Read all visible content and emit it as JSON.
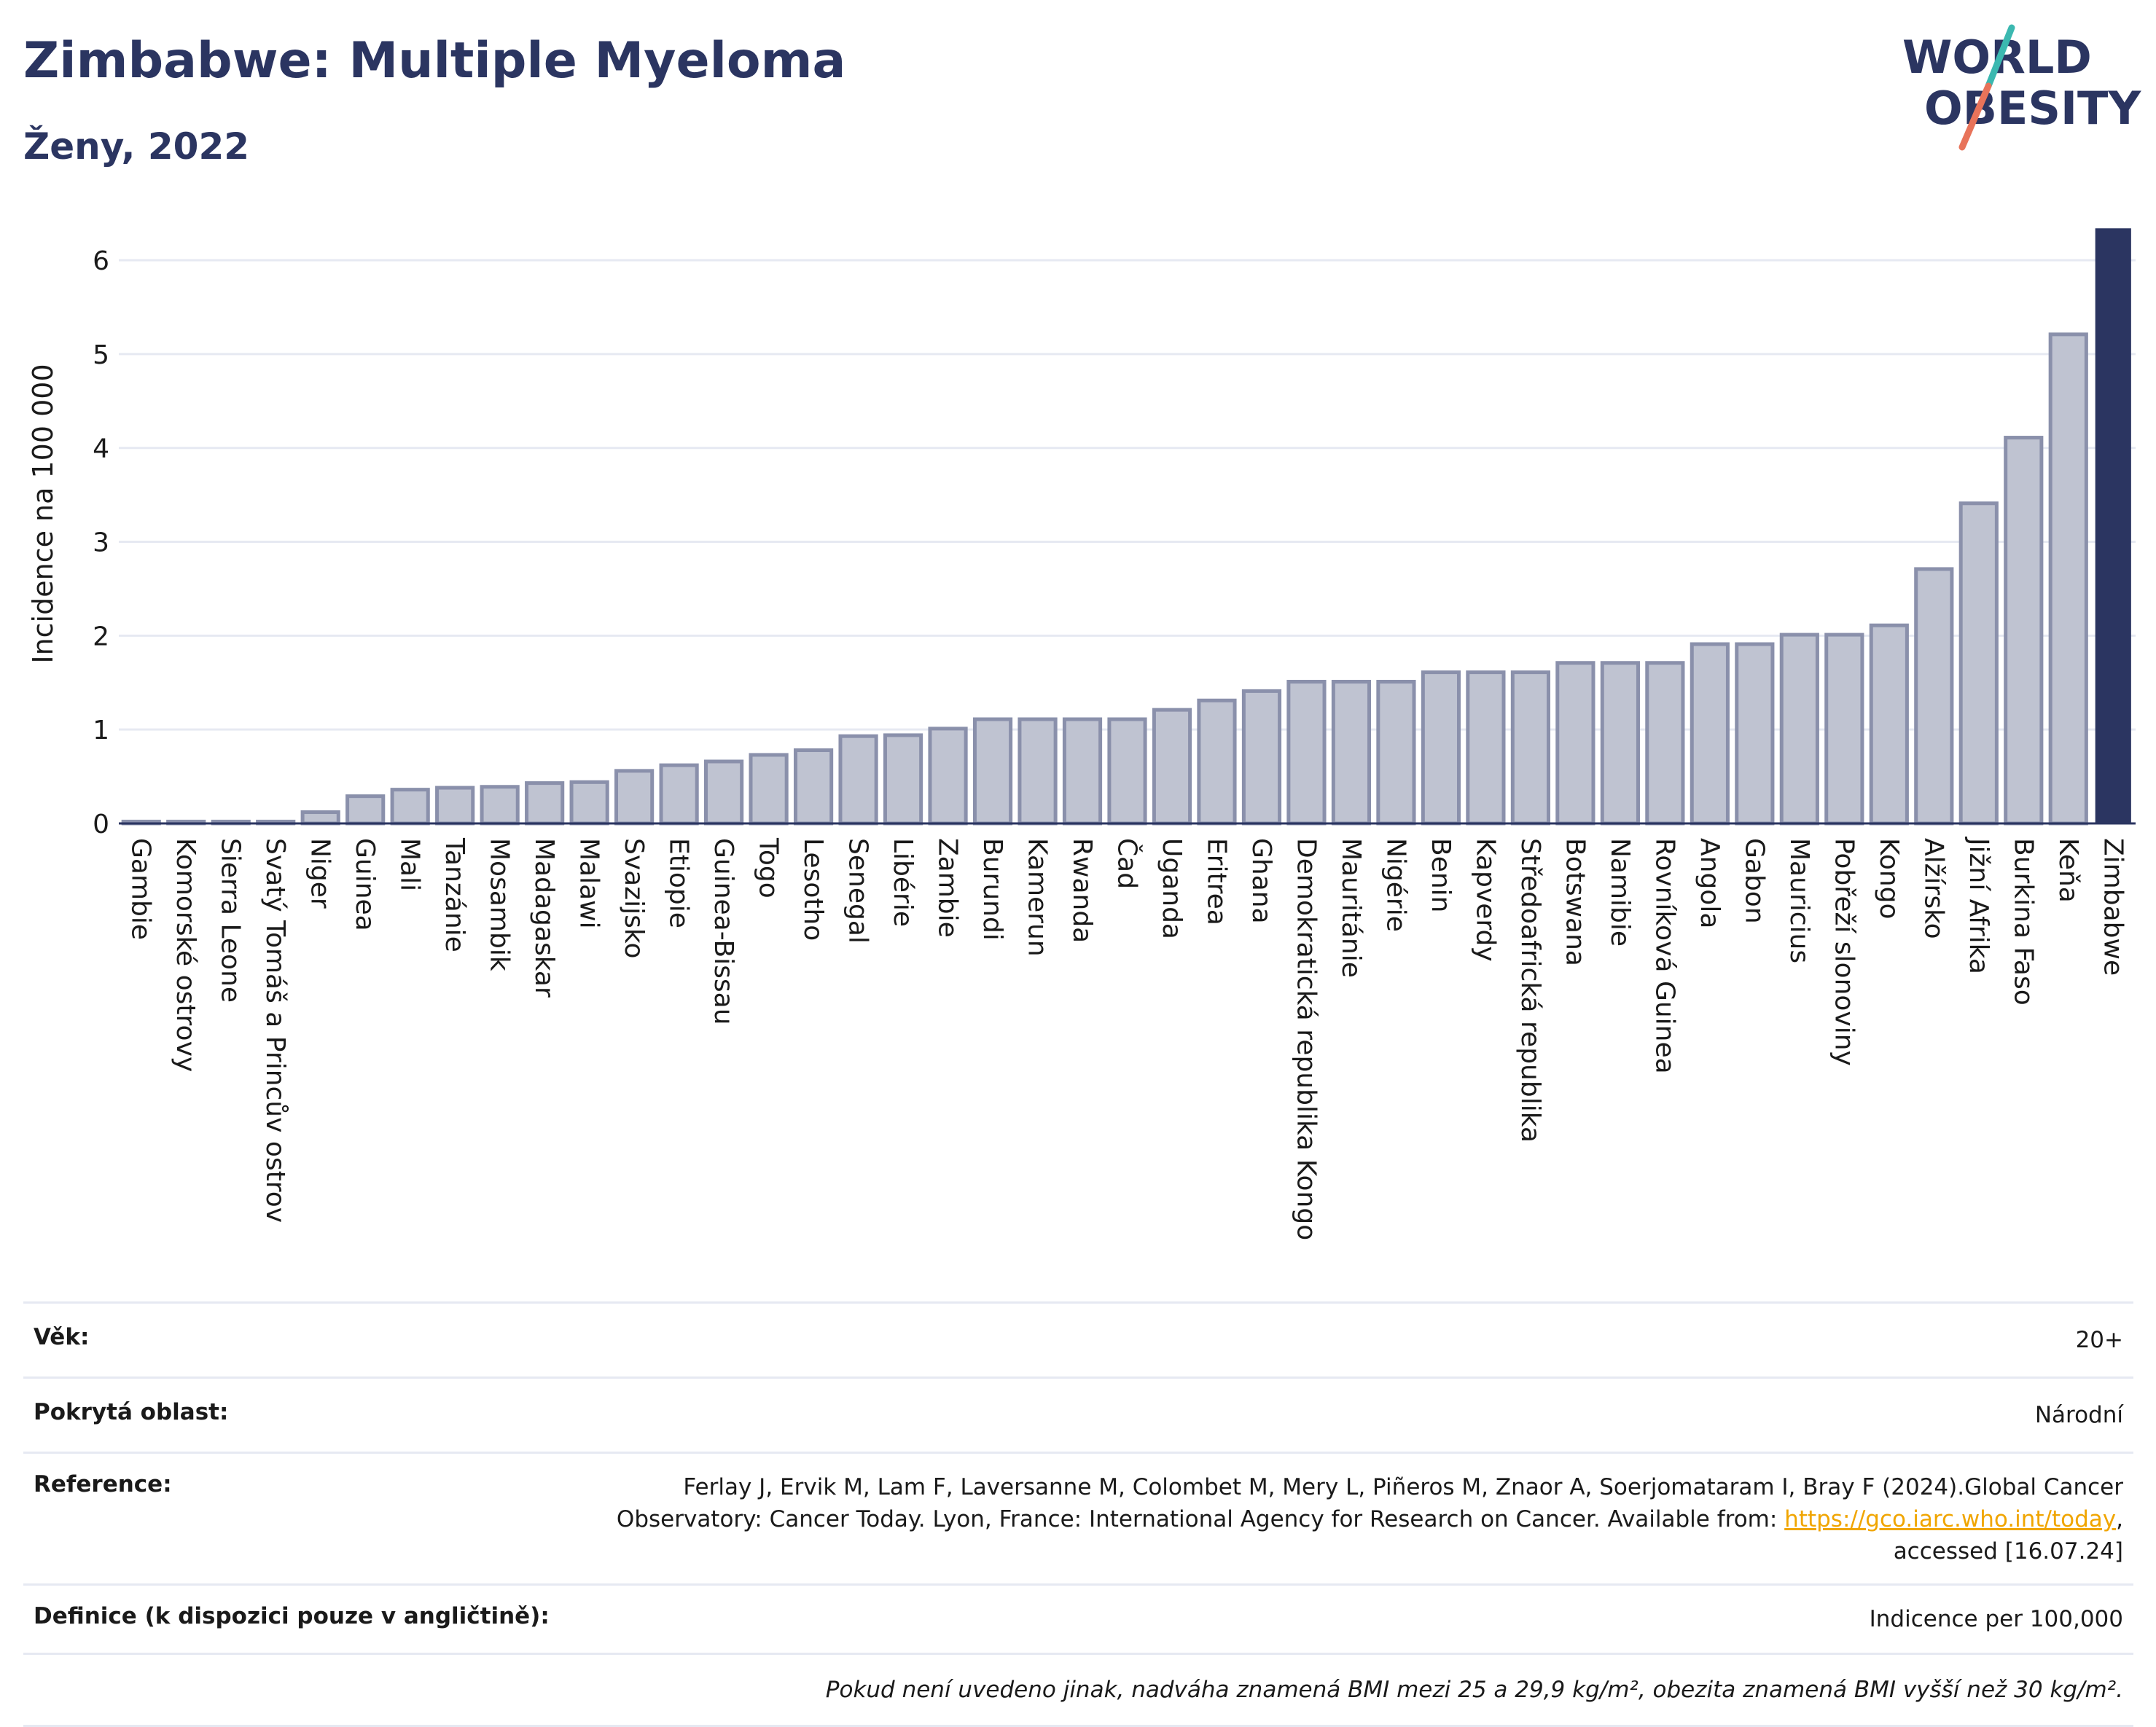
{
  "header": {
    "title": "Zimbabwe: Multiple Myeloma",
    "subtitle": "Ženy, 2022"
  },
  "logo": {
    "line1": "WORLD",
    "line2": "OBESITY"
  },
  "chart_data": {
    "type": "bar",
    "ylabel": "Incidence na 100 000",
    "xlabel": "",
    "ylim": [
      0,
      6.35
    ],
    "yticks": [
      0,
      1,
      2,
      3,
      4,
      5,
      6
    ],
    "grid": true,
    "highlight": "Zimbabwe",
    "colors": {
      "bar": "#bfc3d1",
      "bar_edge": "#8a90ab",
      "highlight": "#2b3561",
      "grid": "#e6e9f2"
    },
    "categories": [
      "Gambie",
      "Komorské ostrovy",
      "Sierra Leone",
      "Svatý Tomáš a Princův ostrov",
      "Niger",
      "Guinea",
      "Mali",
      "Tanzánie",
      "Mosambik",
      "Madagaskar",
      "Malawi",
      "Svazijsko",
      "Etiopie",
      "Guinea-Bissau",
      "Togo",
      "Lesotho",
      "Senegal",
      "Libérie",
      "Zambie",
      "Burundi",
      "Kamerun",
      "Rwanda",
      "Čad",
      "Uganda",
      "Eritrea",
      "Ghana",
      "Demokratická republika Kongo",
      "Mauritánie",
      "Nigérie",
      "Benin",
      "Kapverdy",
      "Středoafrická republika",
      "Botswana",
      "Namibie",
      "Rovníková Guinea",
      "Angola",
      "Gabon",
      "Mauricius",
      "Pobřeží slonoviny",
      "Kongo",
      "Alžírsko",
      "Jižní Afrika",
      "Burkina Faso",
      "Keňa",
      "Zimbabwe"
    ],
    "values": [
      0.02,
      0.02,
      0.02,
      0.02,
      0.12,
      0.29,
      0.36,
      0.38,
      0.39,
      0.43,
      0.44,
      0.56,
      0.62,
      0.66,
      0.73,
      0.78,
      0.93,
      0.94,
      1.01,
      1.11,
      1.11,
      1.11,
      1.11,
      1.21,
      1.31,
      1.41,
      1.51,
      1.51,
      1.51,
      1.61,
      1.61,
      1.61,
      1.71,
      1.71,
      1.71,
      1.91,
      1.91,
      2.01,
      2.01,
      2.11,
      2.71,
      3.41,
      4.11,
      5.21,
      6.34
    ]
  },
  "info": {
    "age_label": "Věk:",
    "age_value": "20+",
    "area_label": "Pokrytá oblast:",
    "area_value": "Národní",
    "ref_label": "Reference:",
    "ref_text1": "Ferlay J, Ervik M, Lam F, Laversanne M, Colombet M, Mery L, Piñeros M, Znaor A, Soerjomataram I, Bray F (2024).Global Cancer",
    "ref_text2": "Observatory: Cancer Today. Lyon, France: International Agency for Research on Cancer. Available from: ",
    "ref_link": "https://gco.iarc.who.int/today",
    "ref_text3": ",",
    "ref_text4": "accessed [16.07.24]",
    "def_label": "Definice (k dispozici pouze v angličtině):",
    "def_value": "Indicence per 100,000",
    "note": "Pokud není uvedeno jinak, nadváha znamená BMI mezi 25 a 29,9 kg/m², obezita znamená BMI vyšší než 30 kg/m²."
  }
}
